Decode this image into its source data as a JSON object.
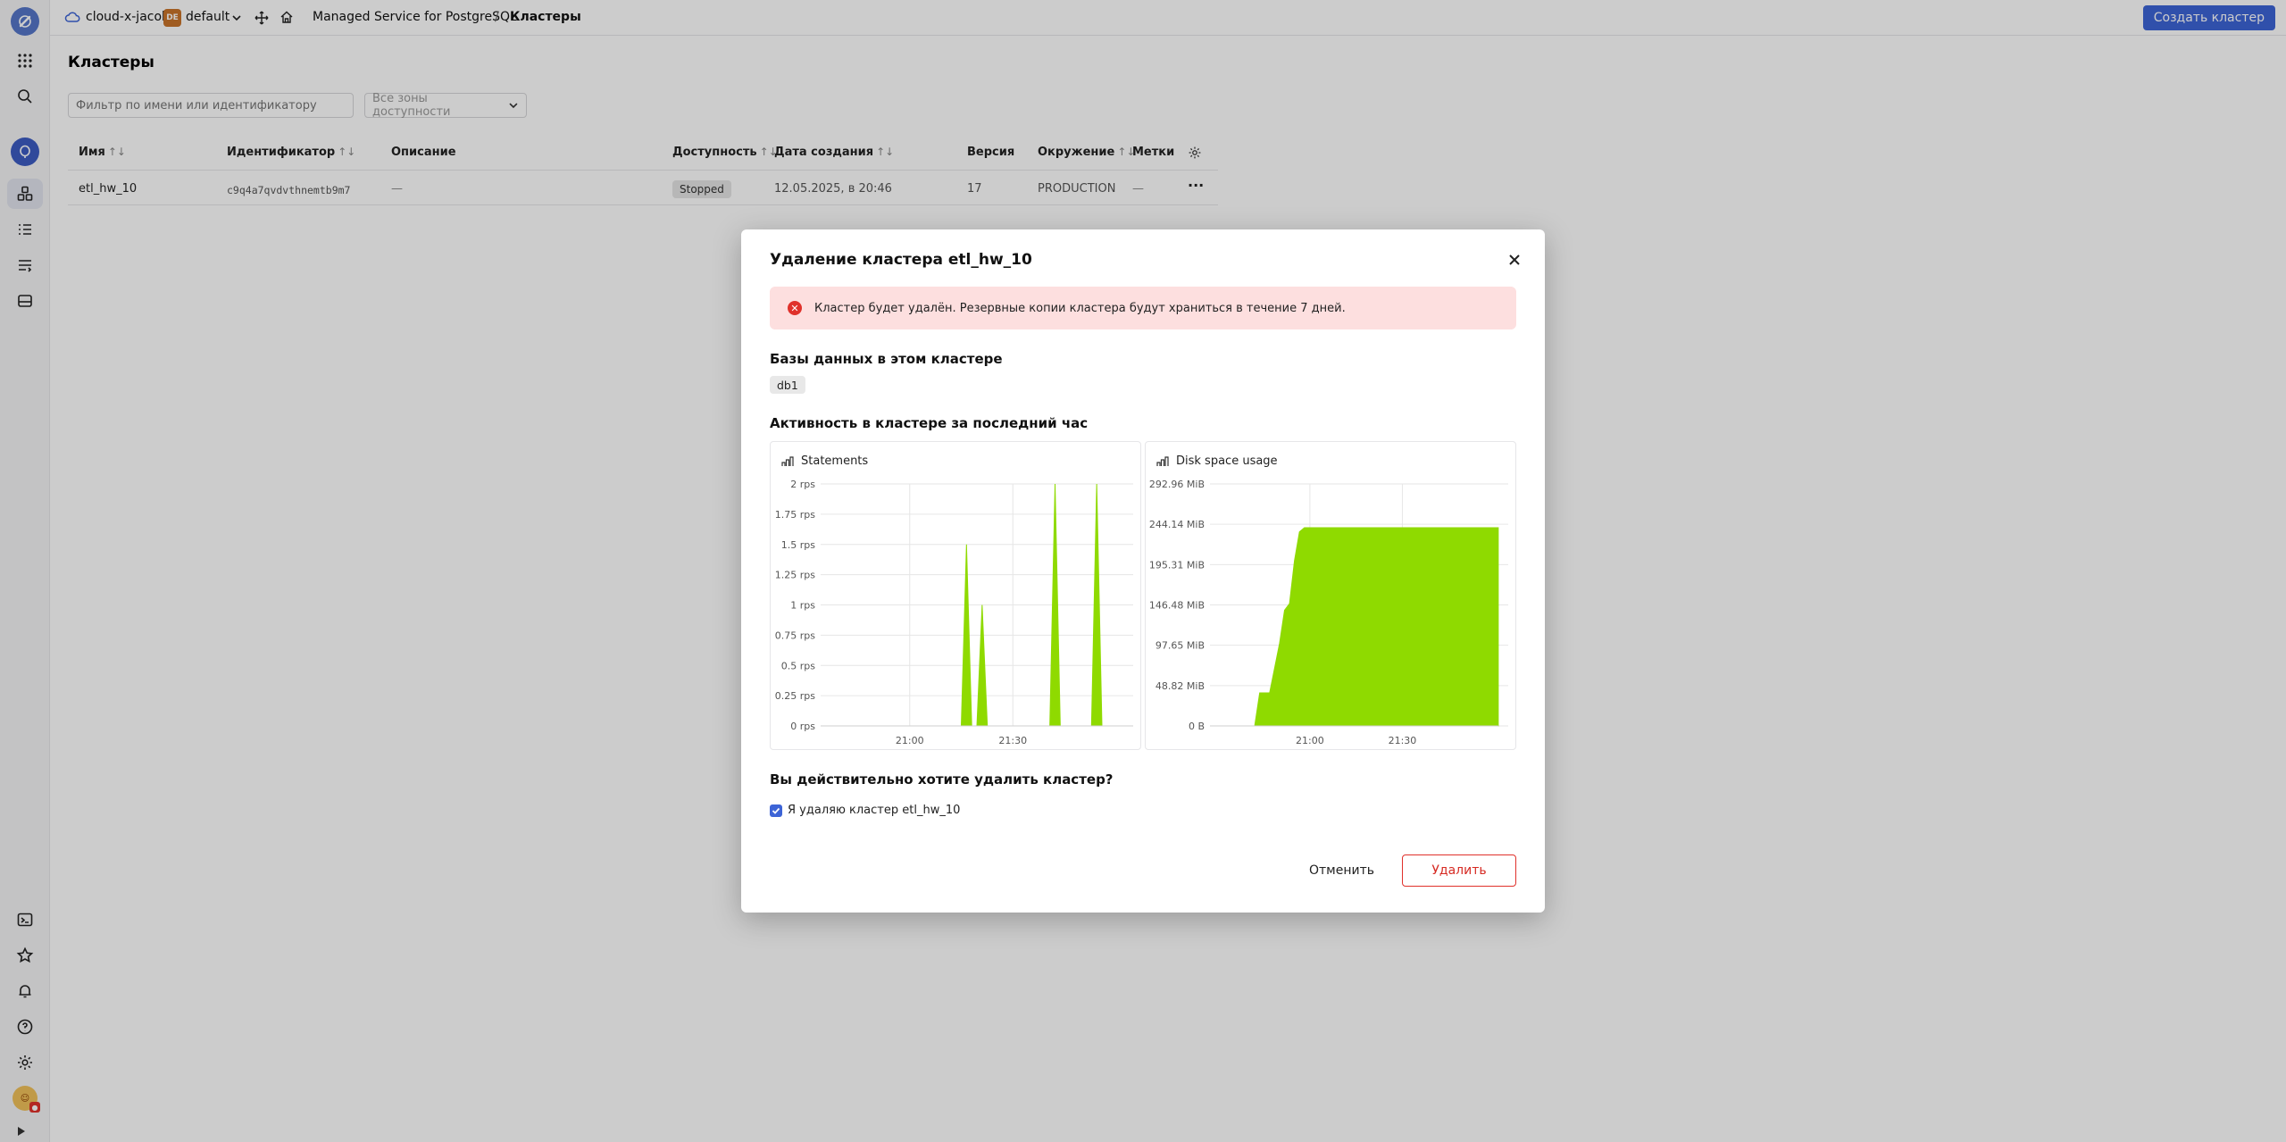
{
  "topbar": {
    "cloud": "cloud-x-jacob",
    "folder_badge": "DE",
    "folder": "default",
    "service": "Managed Service for PostgreSQL",
    "separator": "/",
    "current": "Кластеры",
    "create_button": "Создать кластер"
  },
  "page": {
    "title": "Кластеры",
    "filter_placeholder": "Фильтр по имени или идентификатору",
    "zones_select": "Все зоны доступности"
  },
  "table": {
    "columns": [
      "Имя",
      "Идентификатор",
      "Описание",
      "Доступность",
      "Дата создания",
      "Версия",
      "Окружение",
      "Метки"
    ],
    "sort_glyph": "↑↓",
    "row": {
      "name": "etl_hw_10",
      "id": "c9q4a7qvdvthnemtb9m7",
      "description": "—",
      "status": "Stopped",
      "created": "12.05.2025, в 20:46",
      "version": "17",
      "environment": "PRODUCTION",
      "labels": "—",
      "more": "···"
    }
  },
  "modal": {
    "title": "Удаление кластера etl_hw_10",
    "alert": "Кластер будет удалён. Резервные копии кластера будут храниться в течение 7 дней.",
    "db_section": "Базы данных в этом кластере",
    "db_tag": "db1",
    "activity_section": "Активность в кластере за последний час",
    "confirm_question": "Вы действительно хотите удалить кластер?",
    "checkbox_label": "Я удаляю кластер etl_hw_10",
    "checkbox_checked": true,
    "cancel": "Отменить",
    "delete": "Удалить"
  },
  "colors": {
    "accent": "#3d64d6",
    "danger": "#e0312b",
    "alert_bg": "#fddfdf",
    "series": "#8fda00"
  },
  "chart_data": [
    {
      "type": "area",
      "title": "Statements",
      "y_tick_labels": [
        "2 rps",
        "1.75 rps",
        "1.5 rps",
        "1.25 rps",
        "1 rps",
        "0.75 rps",
        "0.5 rps",
        "0.25 rps",
        "0 rps"
      ],
      "x_tick_labels": [
        "21:00",
        "21:30"
      ],
      "ylim": [
        0,
        2
      ],
      "x": [
        0,
        20,
        27,
        28,
        29,
        30,
        31,
        32,
        33,
        34,
        44,
        45,
        46,
        52,
        53,
        54,
        60
      ],
      "values": [
        0,
        0,
        0,
        1.5,
        0,
        0,
        1.0,
        0,
        0,
        0,
        0,
        2.0,
        0,
        0,
        2.0,
        0,
        0
      ],
      "x_unit": "minutes into the hour shown",
      "grid": true
    },
    {
      "type": "area",
      "title": "Disk space usage",
      "y_tick_labels": [
        "292.96 MiB",
        "244.14 MiB",
        "195.31 MiB",
        "146.48 MiB",
        "97.65 MiB",
        "48.82 MiB",
        "0 B"
      ],
      "x_tick_labels": [
        "21:00",
        "21:30"
      ],
      "ylim": [
        0,
        292.96
      ],
      "x": [
        0,
        9,
        10,
        12,
        14,
        15,
        16,
        17,
        18,
        19,
        58
      ],
      "values": [
        0,
        0,
        40,
        40,
        100,
        140,
        148,
        200,
        235,
        240,
        240
      ],
      "grid": true
    }
  ]
}
